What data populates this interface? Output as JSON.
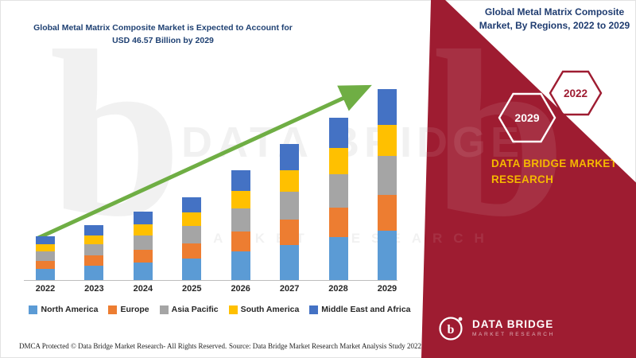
{
  "left": {
    "title_line1": "Global Metal Matrix Composite Market is Expected to Account for",
    "title_line2": "USD 46.57 Billion by 2029"
  },
  "right": {
    "title_line1": "Global Metal Matrix Composite",
    "title_line2": "Market, By Regions, 2022 to 2029",
    "hexagons": [
      {
        "label": "2029"
      },
      {
        "label": "2022"
      }
    ],
    "brand_line1": "DATA BRIDGE MARKET",
    "brand_line2": "RESEARCH",
    "logo": {
      "name": "DATA BRIDGE",
      "subtitle": "MARKET RESEARCH",
      "monogram": "b"
    }
  },
  "watermark": {
    "monogram": "b",
    "line1": "DATA BRIDGE",
    "line2": "MARKET RESEARCH"
  },
  "footer": {
    "dmca": "DMCA Protected © Data Bridge Market Research- All Rights Reserved.",
    "source": "Source: Data Bridge Market Research Market Analysis Study 2022"
  },
  "colors": {
    "maroon": "#9e1c31",
    "navy_title": "#1f4173",
    "arrow_green": "#6fae44",
    "brand_yellow": "#f5b800",
    "hex_outline_white": "#ffffff",
    "hex_outline_maroon": "#9e1c31"
  },
  "chart_data": {
    "type": "bar",
    "stacked": true,
    "title": "Global Metal Matrix Composite Market is Expected to Account for USD 46.57 Billion by 2029",
    "unit": "USD Billion",
    "xlabel": "",
    "ylabel": "",
    "ylim": [
      0,
      50
    ],
    "grid": false,
    "y_axis_visible": false,
    "legend_position": "bottom",
    "annotations": [
      "green growth trend arrow from 2022 to 2029"
    ],
    "categories": [
      "2022",
      "2023",
      "2024",
      "2025",
      "2026",
      "2027",
      "2028",
      "2029"
    ],
    "series": [
      {
        "name": "North America",
        "color": "#5b9bd5",
        "values": [
          2.7,
          3.5,
          4.3,
          5.3,
          7.0,
          8.6,
          10.4,
          12.1
        ]
      },
      {
        "name": "Europe",
        "color": "#ed7d31",
        "values": [
          2.0,
          2.5,
          3.1,
          3.7,
          4.9,
          6.1,
          7.2,
          8.6
        ]
      },
      {
        "name": "Asia Pacific",
        "color": "#a5a5a5",
        "values": [
          2.2,
          2.7,
          3.5,
          4.1,
          5.5,
          6.8,
          8.2,
          9.6
        ]
      },
      {
        "name": "South America",
        "color": "#ffc000",
        "values": [
          1.8,
          2.2,
          2.7,
          3.3,
          4.3,
          5.3,
          6.3,
          7.4
        ]
      },
      {
        "name": "Middle East and Africa",
        "color": "#4472c4",
        "values": [
          2.0,
          2.5,
          3.1,
          3.7,
          5.1,
          6.3,
          7.4,
          8.8
        ]
      }
    ],
    "totals_estimate": [
      10.7,
      13.4,
      16.7,
      20.1,
      26.8,
      33.1,
      39.5,
      46.5
    ]
  }
}
